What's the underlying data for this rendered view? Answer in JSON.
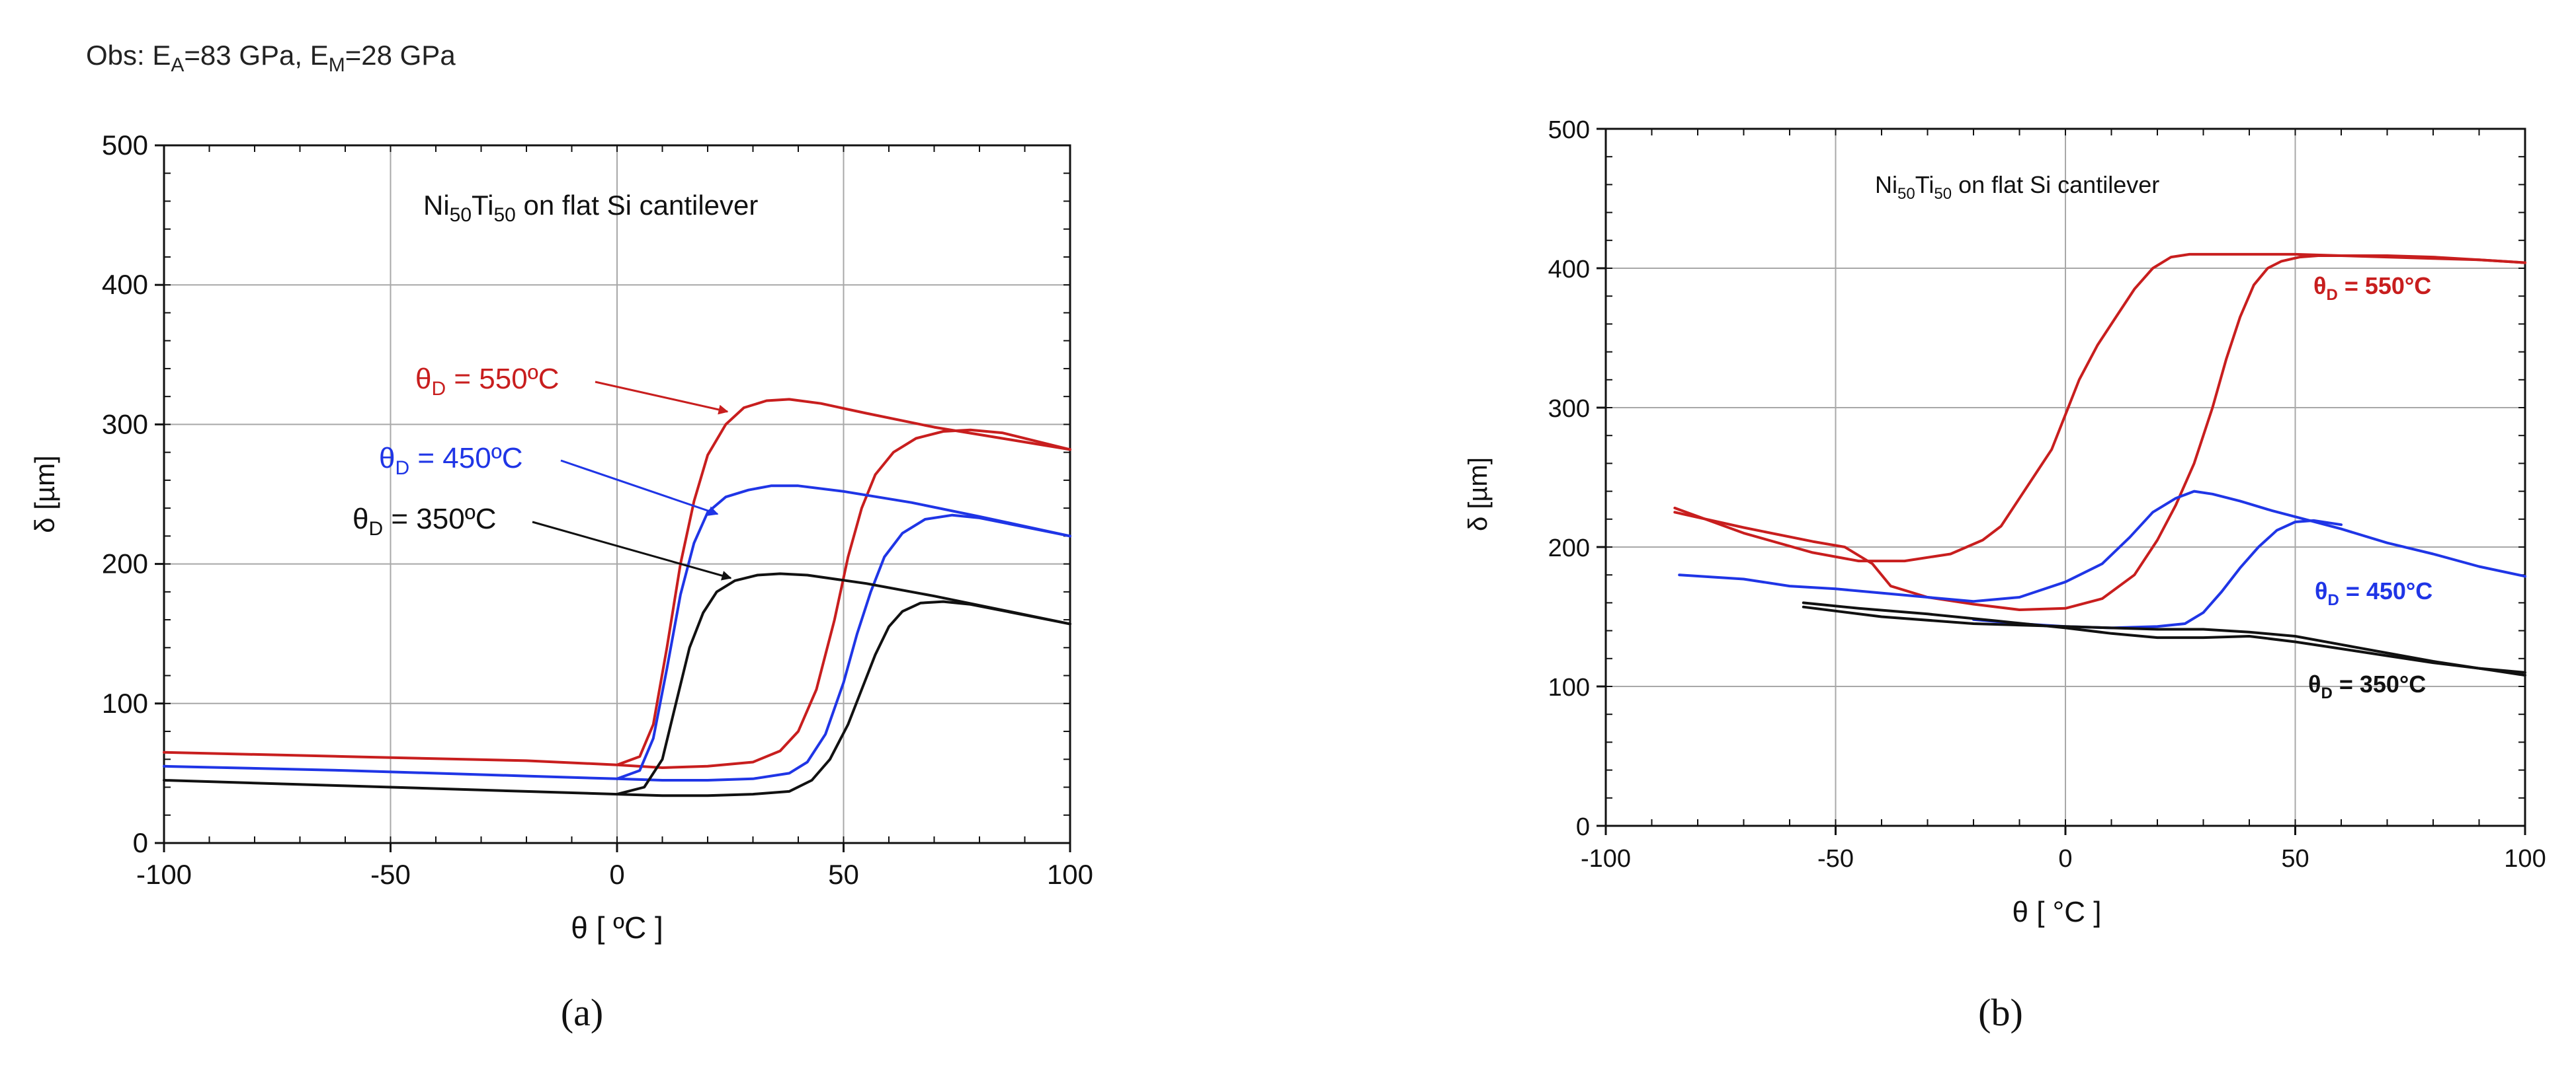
{
  "chart_data": [
    {
      "type": "line",
      "panel_label": "(a)",
      "note": "Obs:  E_A=83 GPa, E_M=28 GPa",
      "note_parts": {
        "prefix": "Obs:  E",
        "sub1": "A",
        "mid": "=83 GPa, E",
        "sub2": "M",
        "suffix": "=28 GPa"
      },
      "title": "Ni50Ti50 on flat Si cantilever",
      "title_parts": {
        "a": "Ni",
        "b": "50",
        "c": "Ti",
        "d": "50",
        "e": " on flat Si cantilever"
      },
      "xlabel": "θ [ ºC ]",
      "ylabel": "δ [µm]",
      "xlim": [
        -100,
        100
      ],
      "ylim": [
        0,
        500
      ],
      "xticks": [
        -100,
        -50,
        0,
        50,
        100
      ],
      "yticks": [
        0,
        100,
        200,
        300,
        400,
        500
      ],
      "grid": true,
      "series": [
        {
          "name": "θD = 550ºC",
          "name_parts": {
            "sym": "θ",
            "sub": "D",
            "rest": " = 550ºC"
          },
          "color": "#c81e1e",
          "cooling": {
            "x": [
              -100,
              -60,
              -20,
              0,
              5,
              8,
              11,
              14,
              17,
              20,
              24,
              28,
              33,
              38,
              45,
              55,
              70,
              85,
              100
            ],
            "y": [
              65,
              62,
              59,
              56,
              62,
              85,
              140,
              200,
              245,
              278,
              300,
              312,
              317,
              318,
              315,
              308,
              298,
              290,
              282
            ]
          },
          "heating": {
            "x": [
              0,
              10,
              20,
              30,
              36,
              40,
              44,
              48,
              51,
              54,
              57,
              61,
              66,
              72,
              78,
              85,
              100
            ],
            "y": [
              56,
              54,
              55,
              58,
              66,
              80,
              110,
              160,
              205,
              240,
              264,
              280,
              290,
              295,
              296,
              294,
              282
            ]
          }
        },
        {
          "name": "θD = 450ºC",
          "name_parts": {
            "sym": "θ",
            "sub": "D",
            "rest": " = 450ºC"
          },
          "color": "#1f35e6",
          "cooling": {
            "x": [
              -100,
              -60,
              -20,
              0,
              5,
              8,
              11,
              14,
              17,
              20,
              24,
              29,
              34,
              40,
              50,
              65,
              80,
              100
            ],
            "y": [
              55,
              52,
              48,
              46,
              52,
              75,
              125,
              178,
              215,
              237,
              248,
              253,
              256,
              256,
              252,
              244,
              234,
              220
            ]
          },
          "heating": {
            "x": [
              0,
              10,
              20,
              30,
              38,
              42,
              46,
              50,
              53,
              56,
              59,
              63,
              68,
              74,
              80,
              100
            ],
            "y": [
              46,
              45,
              45,
              46,
              50,
              58,
              78,
              115,
              150,
              180,
              205,
              222,
              232,
              235,
              233,
              220
            ]
          }
        },
        {
          "name": "θD = 350ºC",
          "name_parts": {
            "sym": "θ",
            "sub": "D",
            "rest": " = 350ºC"
          },
          "color": "#111111",
          "cooling": {
            "x": [
              -100,
              -60,
              -20,
              0,
              6,
              10,
              13,
              16,
              19,
              22,
              26,
              31,
              36,
              42,
              55,
              70,
              85,
              100
            ],
            "y": [
              45,
              41,
              37,
              35,
              40,
              60,
              100,
              140,
              165,
              180,
              188,
              192,
              193,
              192,
              186,
              177,
              167,
              157
            ]
          },
          "heating": {
            "x": [
              0,
              10,
              20,
              30,
              38,
              43,
              47,
              51,
              54,
              57,
              60,
              63,
              67,
              72,
              78,
              100
            ],
            "y": [
              35,
              34,
              34,
              35,
              37,
              45,
              60,
              85,
              110,
              135,
              155,
              166,
              172,
              173,
              171,
              157
            ]
          }
        }
      ]
    },
    {
      "type": "line",
      "panel_label": "(b)",
      "title": "Ni50Ti50 on flat Si cantilever",
      "title_parts": {
        "a": "Ni",
        "b": "50",
        "c": "Ti",
        "d": "50",
        "e": " on flat Si cantilever"
      },
      "xlabel": "θ [ °C ]",
      "ylabel": "δ [µm]",
      "xlim": [
        -100,
        100
      ],
      "ylim": [
        0,
        500
      ],
      "xticks": [
        -100,
        -50,
        0,
        50,
        100
      ],
      "yticks": [
        0,
        100,
        200,
        300,
        400,
        500
      ],
      "grid": true,
      "series": [
        {
          "name": "θD = 550°C",
          "name_parts": {
            "sym": "θ",
            "sub": "D",
            "rest": " = 550°C"
          },
          "color": "#c81e1e",
          "cooling": {
            "x": [
              -85,
              -70,
              -55,
              -45,
              -35,
              -25,
              -18,
              -14,
              -10,
              -6,
              -3,
              0,
              3,
              7,
              11,
              15,
              19,
              23,
              27,
              32,
              40,
              50,
              60,
              70,
              80,
              90,
              100
            ],
            "y": [
              228,
              210,
              196,
              190,
              190,
              195,
              205,
              215,
              235,
              255,
              270,
              295,
              320,
              345,
              365,
              385,
              400,
              408,
              410,
              410,
              410,
              410,
              409,
              408,
              407,
              406,
              404
            ]
          },
          "heating": {
            "x": [
              -85,
              -70,
              -55,
              -48,
              -42,
              -38,
              -30,
              -20,
              -10,
              0,
              8,
              15,
              20,
              24,
              28,
              32,
              35,
              38,
              41,
              44,
              47,
              51,
              55,
              60,
              70,
              80,
              90,
              100
            ],
            "y": [
              225,
              214,
              204,
              200,
              188,
              172,
              164,
              159,
              155,
              156,
              163,
              180,
              205,
              230,
              260,
              300,
              335,
              365,
              388,
              400,
              405,
              408,
              409,
              409,
              409,
              408,
              406,
              404
            ]
          }
        },
        {
          "name": "θD = 450°C",
          "name_parts": {
            "sym": "θ",
            "sub": "D",
            "rest": " = 450°C"
          },
          "color": "#1f35e6",
          "cooling": {
            "x": [
              -84,
              -70,
              -60,
              -50,
              -40,
              -30,
              -20,
              -10,
              0,
              8,
              14,
              19,
              24,
              28,
              32,
              38,
              45,
              52,
              60,
              70,
              80,
              90,
              100
            ],
            "y": [
              180,
              177,
              172,
              170,
              167,
              164,
              161,
              164,
              175,
              188,
              207,
              225,
              235,
              240,
              238,
              233,
              226,
              220,
              213,
              203,
              195,
              186,
              179
            ]
          },
          "heating": {
            "x": [
              -20,
              -10,
              0,
              10,
              20,
              26,
              30,
              34,
              38,
              42,
              46,
              50,
              54,
              60
            ],
            "y": [
              148,
              145,
              143,
              142,
              143,
              145,
              153,
              168,
              185,
              200,
              212,
              218,
              219,
              216
            ]
          }
        },
        {
          "name": "θD = 350°C",
          "name_parts": {
            "sym": "θ",
            "sub": "D",
            "rest": " = 350°C"
          },
          "color": "#111111",
          "cooling": {
            "x": [
              -57,
              -45,
              -30,
              -15,
              0,
              10,
              20,
              30,
              40,
              50,
              60,
              70,
              80,
              90,
              100
            ],
            "y": [
              160,
              156,
              152,
              147,
              142,
              138,
              135,
              135,
              136,
              132,
              127,
              122,
              117,
              113,
              110
            ]
          },
          "heating": {
            "x": [
              -57,
              -40,
              -20,
              0,
              10,
              20,
              30,
              40,
              50,
              60,
              70,
              80,
              90,
              100
            ],
            "y": [
              157,
              150,
              145,
              143,
              142,
              141,
              141,
              139,
              136,
              130,
              124,
              118,
              113,
              108
            ]
          }
        }
      ]
    }
  ]
}
